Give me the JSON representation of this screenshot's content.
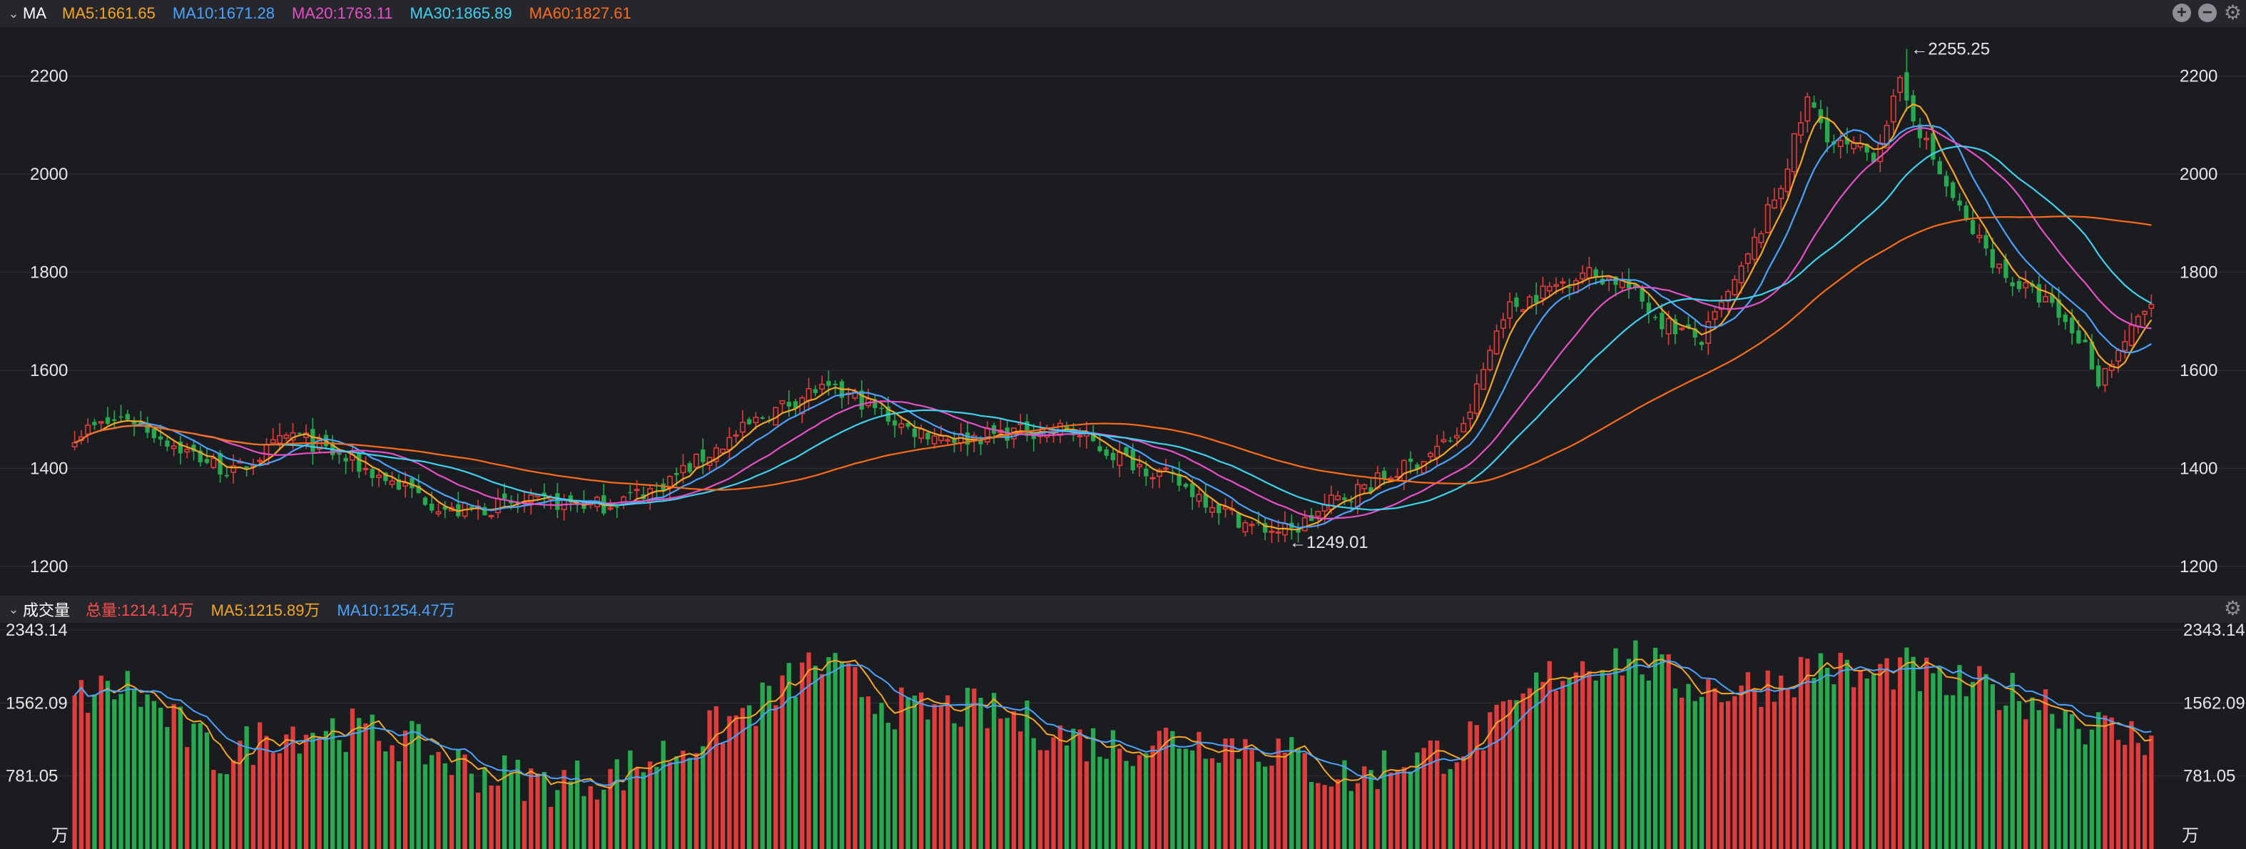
{
  "main_panel": {
    "label": "MA",
    "indicators": [
      {
        "label": "MA5:1661.65",
        "color": "#f5a623"
      },
      {
        "label": "MA10:1671.28",
        "color": "#4aa3ff"
      },
      {
        "label": "MA20:1763.11",
        "color": "#e84fc9"
      },
      {
        "label": "MA30:1865.89",
        "color": "#3fd2f0"
      },
      {
        "label": "MA60:1827.61",
        "color": "#ff6b1a"
      }
    ],
    "controls": [
      "zoom-in-icon",
      "zoom-out-icon",
      "gear-icon"
    ]
  },
  "volume_panel": {
    "label": "成交量",
    "indicators": [
      {
        "label": "总量:1214.14万",
        "color": "#ff4d4d"
      },
      {
        "label": "MA5:1215.89万",
        "color": "#f5a623"
      },
      {
        "label": "MA10:1254.47万",
        "color": "#4aa3ff"
      }
    ],
    "controls": [
      "gear-icon"
    ]
  },
  "colors": {
    "up": "#e03c3c",
    "down": "#27a94f",
    "grid": "#2a2b31",
    "background": "#1b1c20"
  },
  "chart_data": [
    {
      "type": "candlestick",
      "ylim": [
        1140,
        2300
      ],
      "y_ticks": [
        "1200",
        "1400",
        "1600",
        "1800",
        "2000",
        "2200"
      ],
      "annotations": [
        {
          "label": "←2255.25",
          "value": 2255.25,
          "at": "high"
        },
        {
          "label": "←1249.01",
          "value": 1249.01,
          "at": "low"
        }
      ],
      "close_keypoints": [
        [
          0,
          1470
        ],
        [
          8,
          1505
        ],
        [
          16,
          1440
        ],
        [
          24,
          1390
        ],
        [
          33,
          1470
        ],
        [
          42,
          1410
        ],
        [
          50,
          1360
        ],
        [
          57,
          1310
        ],
        [
          65,
          1325
        ],
        [
          72,
          1330
        ],
        [
          80,
          1325
        ],
        [
          88,
          1360
        ],
        [
          96,
          1430
        ],
        [
          104,
          1505
        ],
        [
          112,
          1560
        ],
        [
          118,
          1545
        ],
        [
          126,
          1480
        ],
        [
          134,
          1460
        ],
        [
          142,
          1475
        ],
        [
          150,
          1480
        ],
        [
          156,
          1435
        ],
        [
          164,
          1390
        ],
        [
          172,
          1330
        ],
        [
          178,
          1280
        ],
        [
          184,
          1270
        ],
        [
          190,
          1330
        ],
        [
          198,
          1380
        ],
        [
          204,
          1420
        ],
        [
          210,
          1480
        ],
        [
          216,
          1720
        ],
        [
          222,
          1760
        ],
        [
          228,
          1800
        ],
        [
          234,
          1780
        ],
        [
          240,
          1700
        ],
        [
          246,
          1660
        ],
        [
          252,
          1800
        ],
        [
          258,
          1980
        ],
        [
          262,
          2150
        ],
        [
          266,
          2060
        ],
        [
          272,
          2040
        ],
        [
          276,
          2180
        ],
        [
          282,
          2000
        ],
        [
          286,
          1900
        ],
        [
          292,
          1790
        ],
        [
          298,
          1740
        ],
        [
          304,
          1650
        ],
        [
          306,
          1580
        ],
        [
          310,
          1660
        ],
        [
          314,
          1738
        ]
      ],
      "ma_series": [
        {
          "name": "MA5",
          "period": 5,
          "color": "#f5a623"
        },
        {
          "name": "MA10",
          "period": 10,
          "color": "#4aa3ff"
        },
        {
          "name": "MA20",
          "period": 20,
          "color": "#e84fc9"
        },
        {
          "name": "MA30",
          "period": 30,
          "color": "#3fd2f0"
        },
        {
          "name": "MA60",
          "period": 60,
          "color": "#ff6b1a"
        }
      ]
    },
    {
      "type": "bar",
      "ylim": [
        0,
        2343.14
      ],
      "y_ticks": [
        "2343.14",
        "1562.09",
        "781.05"
      ],
      "unit": "万",
      "volume_keypoints": [
        [
          0,
          1600
        ],
        [
          8,
          1750
        ],
        [
          15,
          1350
        ],
        [
          22,
          950
        ],
        [
          30,
          1250
        ],
        [
          40,
          1300
        ],
        [
          50,
          1150
        ],
        [
          60,
          850
        ],
        [
          72,
          700
        ],
        [
          82,
          800
        ],
        [
          92,
          1100
        ],
        [
          100,
          1400
        ],
        [
          106,
          1650
        ],
        [
          112,
          2000
        ],
        [
          118,
          1750
        ],
        [
          126,
          1450
        ],
        [
          134,
          1500
        ],
        [
          142,
          1400
        ],
        [
          150,
          1200
        ],
        [
          158,
          1100
        ],
        [
          166,
          1200
        ],
        [
          174,
          1150
        ],
        [
          182,
          1050
        ],
        [
          188,
          850
        ],
        [
          194,
          750
        ],
        [
          200,
          950
        ],
        [
          208,
          1050
        ],
        [
          216,
          1350
        ],
        [
          222,
          1800
        ],
        [
          228,
          2000
        ],
        [
          236,
          2050
        ],
        [
          242,
          1800
        ],
        [
          250,
          1700
        ],
        [
          258,
          1800
        ],
        [
          264,
          2000
        ],
        [
          270,
          1800
        ],
        [
          276,
          1950
        ],
        [
          282,
          1750
        ],
        [
          290,
          1700
        ],
        [
          298,
          1600
        ],
        [
          304,
          1350
        ],
        [
          310,
          1200
        ],
        [
          314,
          1214
        ]
      ],
      "ma_series": [
        {
          "name": "MA5",
          "period": 5,
          "color": "#f5a623"
        },
        {
          "name": "MA10",
          "period": 10,
          "color": "#4aa3ff"
        }
      ]
    }
  ]
}
